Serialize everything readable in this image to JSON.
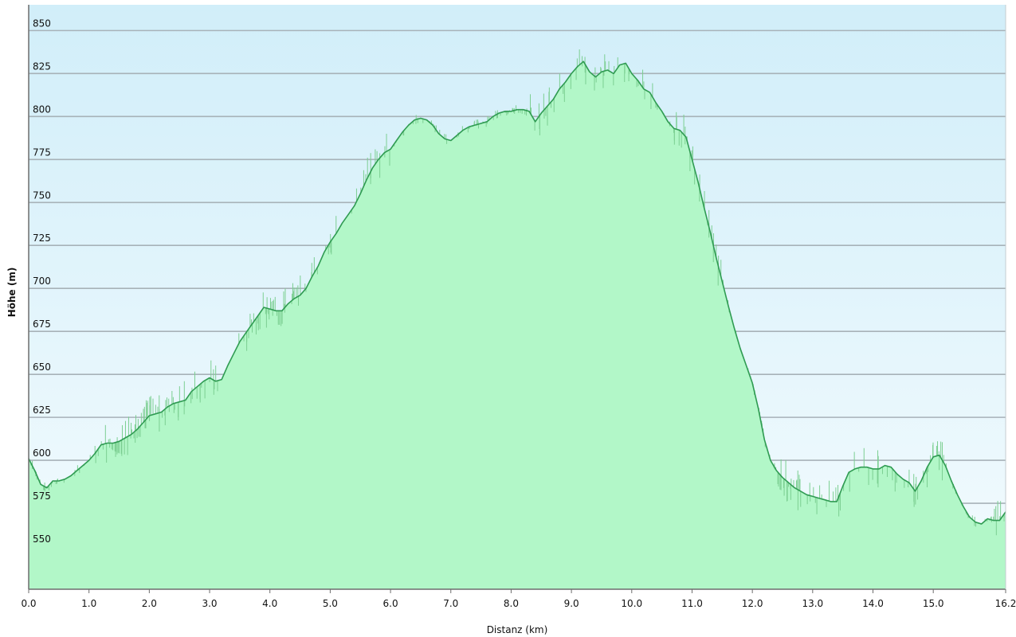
{
  "chart_data": {
    "type": "area",
    "title": "",
    "xlabel": "Distanz  (km)",
    "ylabel": "Höhe (m)",
    "xlim": [
      0,
      16.2
    ],
    "ylim": [
      525,
      865
    ],
    "x_ticks": [
      "0.0",
      "1.0",
      "2.0",
      "3.0",
      "4.0",
      "5.0",
      "6.0",
      "7.0",
      "8.0",
      "9.0",
      "10.0",
      "11.0",
      "12.0",
      "13.0",
      "14.0",
      "15.0",
      "16.2"
    ],
    "x_tick_values": [
      0,
      1,
      2,
      3,
      4,
      5,
      6,
      7,
      8,
      9,
      10,
      11,
      12,
      13,
      14,
      15,
      16.2
    ],
    "y_ticks": [
      "550",
      "575",
      "600",
      "625",
      "650",
      "675",
      "700",
      "725",
      "750",
      "775",
      "800",
      "825",
      "850"
    ],
    "y_tick_values": [
      550,
      575,
      600,
      625,
      650,
      675,
      700,
      725,
      750,
      775,
      800,
      825,
      850
    ],
    "grid": "horizontal",
    "colors": {
      "fill": "#b2f7c8",
      "line": "#2f9b52",
      "noise": "#7ccf92",
      "sky_top": "#d1eef9",
      "sky_bottom": "#f3fbfe",
      "grid": "#a7b2b8",
      "axis": "#6d6d6d"
    },
    "series": [
      {
        "x": [
          0,
          0.1,
          0.2,
          0.3,
          0.4,
          0.5,
          0.6,
          0.7,
          0.8,
          0.9,
          1.0,
          1.1,
          1.2,
          1.3,
          1.4,
          1.5,
          1.6,
          1.7,
          1.8,
          1.9,
          2.0,
          2.1,
          2.2,
          2.3,
          2.4,
          2.5,
          2.6,
          2.7,
          2.8,
          2.9,
          3.0,
          3.1,
          3.2,
          3.3,
          3.4,
          3.5,
          3.6,
          3.7,
          3.8,
          3.9,
          4.0,
          4.1,
          4.2,
          4.3,
          4.4,
          4.5,
          4.6,
          4.7,
          4.8,
          4.9,
          5.0,
          5.1,
          5.2,
          5.3,
          5.4,
          5.5,
          5.6,
          5.7,
          5.8,
          5.9,
          6.0,
          6.1,
          6.2,
          6.3,
          6.4,
          6.5,
          6.6,
          6.7,
          6.8,
          6.9,
          7.0,
          7.1,
          7.2,
          7.3,
          7.4,
          7.5,
          7.6,
          7.7,
          7.8,
          7.9,
          8.0,
          8.1,
          8.2,
          8.3,
          8.4,
          8.5,
          8.6,
          8.7,
          8.8,
          8.9,
          9.0,
          9.1,
          9.2,
          9.3,
          9.4,
          9.5,
          9.6,
          9.7,
          9.8,
          9.9,
          10.0,
          10.1,
          10.2,
          10.3,
          10.4,
          10.5,
          10.6,
          10.7,
          10.8,
          10.9,
          11.0,
          11.1,
          11.2,
          11.3,
          11.4,
          11.5,
          11.6,
          11.7,
          11.8,
          11.9,
          12.0,
          12.1,
          12.2,
          12.3,
          12.4,
          12.5,
          12.6,
          12.7,
          12.8,
          12.9,
          13.0,
          13.1,
          13.2,
          13.3,
          13.4,
          13.5,
          13.6,
          13.7,
          13.8,
          13.9,
          14.0,
          14.1,
          14.2,
          14.3,
          14.4,
          14.5,
          14.6,
          14.7,
          14.8,
          14.9,
          15.0,
          15.1,
          15.2,
          15.3,
          15.4,
          15.5,
          15.6,
          15.7,
          15.8,
          15.9,
          16.0,
          16.1,
          16.2
        ],
        "y": [
          601,
          594,
          586,
          584,
          588,
          588,
          589,
          591,
          594,
          597,
          600,
          604,
          609,
          610,
          610,
          611,
          613,
          615,
          618,
          622,
          626,
          627,
          628,
          631,
          633,
          634,
          635,
          640,
          643,
          646,
          648,
          646,
          647,
          655,
          662,
          669,
          674,
          679,
          684,
          689,
          688,
          687,
          687,
          691,
          694,
          696,
          700,
          707,
          713,
          721,
          727,
          732,
          738,
          743,
          748,
          755,
          763,
          770,
          775,
          779,
          781,
          786,
          791,
          795,
          798,
          799,
          798,
          795,
          790,
          787,
          786,
          789,
          792,
          794,
          795,
          796,
          797,
          800,
          802,
          803,
          803,
          804,
          804,
          803,
          797,
          802,
          806,
          810,
          816,
          820,
          825,
          829,
          832,
          826,
          823,
          826,
          827,
          825,
          830,
          831,
          825,
          821,
          816,
          814,
          808,
          803,
          797,
          793,
          792,
          788,
          775,
          762,
          747,
          733,
          718,
          704,
          690,
          677,
          665,
          655,
          645,
          630,
          612,
          600,
          594,
          590,
          587,
          584,
          582,
          580,
          579,
          578,
          577,
          576,
          576,
          585,
          593,
          595,
          596,
          596,
          595,
          595,
          597,
          596,
          592,
          589,
          587,
          582,
          588,
          596,
          602,
          603,
          597,
          588,
          580,
          573,
          567,
          564,
          563,
          566,
          565,
          565,
          570
        ]
      }
    ]
  }
}
